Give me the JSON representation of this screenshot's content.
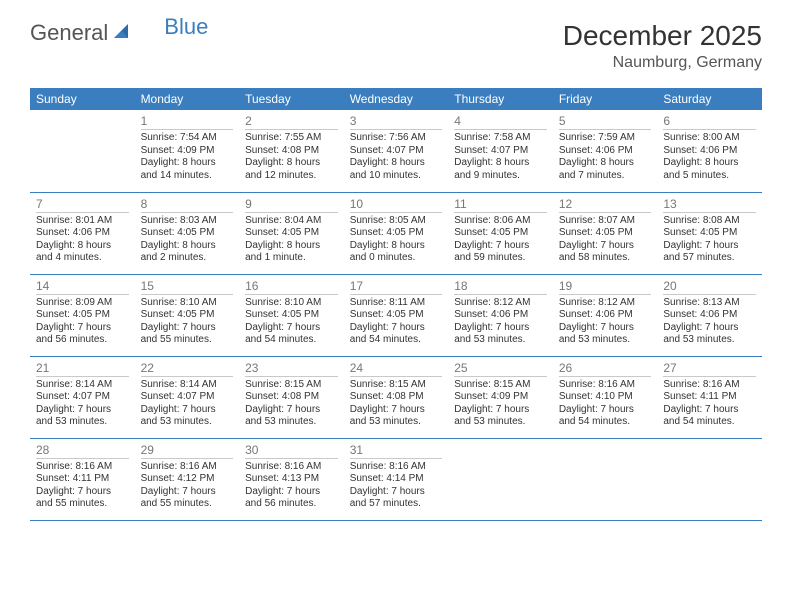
{
  "brand": {
    "part1": "General",
    "part2": "Blue"
  },
  "title": "December 2025",
  "location": "Naumburg, Germany",
  "colors": {
    "header_bg": "#3a7ebf",
    "header_text": "#ffffff",
    "row_divider": "#3a7ebf",
    "daynum_divider": "#c9c9c9",
    "text": "#333333",
    "logo_blue": "#3a7ebf"
  },
  "weekdays": [
    "Sunday",
    "Monday",
    "Tuesday",
    "Wednesday",
    "Thursday",
    "Friday",
    "Saturday"
  ],
  "weeks": [
    [
      {
        "n": "",
        "sunrise": "",
        "sunset": "",
        "daylight": ""
      },
      {
        "n": "1",
        "sunrise": "Sunrise: 7:54 AM",
        "sunset": "Sunset: 4:09 PM",
        "daylight": "Daylight: 8 hours and 14 minutes."
      },
      {
        "n": "2",
        "sunrise": "Sunrise: 7:55 AM",
        "sunset": "Sunset: 4:08 PM",
        "daylight": "Daylight: 8 hours and 12 minutes."
      },
      {
        "n": "3",
        "sunrise": "Sunrise: 7:56 AM",
        "sunset": "Sunset: 4:07 PM",
        "daylight": "Daylight: 8 hours and 10 minutes."
      },
      {
        "n": "4",
        "sunrise": "Sunrise: 7:58 AM",
        "sunset": "Sunset: 4:07 PM",
        "daylight": "Daylight: 8 hours and 9 minutes."
      },
      {
        "n": "5",
        "sunrise": "Sunrise: 7:59 AM",
        "sunset": "Sunset: 4:06 PM",
        "daylight": "Daylight: 8 hours and 7 minutes."
      },
      {
        "n": "6",
        "sunrise": "Sunrise: 8:00 AM",
        "sunset": "Sunset: 4:06 PM",
        "daylight": "Daylight: 8 hours and 5 minutes."
      }
    ],
    [
      {
        "n": "7",
        "sunrise": "Sunrise: 8:01 AM",
        "sunset": "Sunset: 4:06 PM",
        "daylight": "Daylight: 8 hours and 4 minutes."
      },
      {
        "n": "8",
        "sunrise": "Sunrise: 8:03 AM",
        "sunset": "Sunset: 4:05 PM",
        "daylight": "Daylight: 8 hours and 2 minutes."
      },
      {
        "n": "9",
        "sunrise": "Sunrise: 8:04 AM",
        "sunset": "Sunset: 4:05 PM",
        "daylight": "Daylight: 8 hours and 1 minute."
      },
      {
        "n": "10",
        "sunrise": "Sunrise: 8:05 AM",
        "sunset": "Sunset: 4:05 PM",
        "daylight": "Daylight: 8 hours and 0 minutes."
      },
      {
        "n": "11",
        "sunrise": "Sunrise: 8:06 AM",
        "sunset": "Sunset: 4:05 PM",
        "daylight": "Daylight: 7 hours and 59 minutes."
      },
      {
        "n": "12",
        "sunrise": "Sunrise: 8:07 AM",
        "sunset": "Sunset: 4:05 PM",
        "daylight": "Daylight: 7 hours and 58 minutes."
      },
      {
        "n": "13",
        "sunrise": "Sunrise: 8:08 AM",
        "sunset": "Sunset: 4:05 PM",
        "daylight": "Daylight: 7 hours and 57 minutes."
      }
    ],
    [
      {
        "n": "14",
        "sunrise": "Sunrise: 8:09 AM",
        "sunset": "Sunset: 4:05 PM",
        "daylight": "Daylight: 7 hours and 56 minutes."
      },
      {
        "n": "15",
        "sunrise": "Sunrise: 8:10 AM",
        "sunset": "Sunset: 4:05 PM",
        "daylight": "Daylight: 7 hours and 55 minutes."
      },
      {
        "n": "16",
        "sunrise": "Sunrise: 8:10 AM",
        "sunset": "Sunset: 4:05 PM",
        "daylight": "Daylight: 7 hours and 54 minutes."
      },
      {
        "n": "17",
        "sunrise": "Sunrise: 8:11 AM",
        "sunset": "Sunset: 4:05 PM",
        "daylight": "Daylight: 7 hours and 54 minutes."
      },
      {
        "n": "18",
        "sunrise": "Sunrise: 8:12 AM",
        "sunset": "Sunset: 4:06 PM",
        "daylight": "Daylight: 7 hours and 53 minutes."
      },
      {
        "n": "19",
        "sunrise": "Sunrise: 8:12 AM",
        "sunset": "Sunset: 4:06 PM",
        "daylight": "Daylight: 7 hours and 53 minutes."
      },
      {
        "n": "20",
        "sunrise": "Sunrise: 8:13 AM",
        "sunset": "Sunset: 4:06 PM",
        "daylight": "Daylight: 7 hours and 53 minutes."
      }
    ],
    [
      {
        "n": "21",
        "sunrise": "Sunrise: 8:14 AM",
        "sunset": "Sunset: 4:07 PM",
        "daylight": "Daylight: 7 hours and 53 minutes."
      },
      {
        "n": "22",
        "sunrise": "Sunrise: 8:14 AM",
        "sunset": "Sunset: 4:07 PM",
        "daylight": "Daylight: 7 hours and 53 minutes."
      },
      {
        "n": "23",
        "sunrise": "Sunrise: 8:15 AM",
        "sunset": "Sunset: 4:08 PM",
        "daylight": "Daylight: 7 hours and 53 minutes."
      },
      {
        "n": "24",
        "sunrise": "Sunrise: 8:15 AM",
        "sunset": "Sunset: 4:08 PM",
        "daylight": "Daylight: 7 hours and 53 minutes."
      },
      {
        "n": "25",
        "sunrise": "Sunrise: 8:15 AM",
        "sunset": "Sunset: 4:09 PM",
        "daylight": "Daylight: 7 hours and 53 minutes."
      },
      {
        "n": "26",
        "sunrise": "Sunrise: 8:16 AM",
        "sunset": "Sunset: 4:10 PM",
        "daylight": "Daylight: 7 hours and 54 minutes."
      },
      {
        "n": "27",
        "sunrise": "Sunrise: 8:16 AM",
        "sunset": "Sunset: 4:11 PM",
        "daylight": "Daylight: 7 hours and 54 minutes."
      }
    ],
    [
      {
        "n": "28",
        "sunrise": "Sunrise: 8:16 AM",
        "sunset": "Sunset: 4:11 PM",
        "daylight": "Daylight: 7 hours and 55 minutes."
      },
      {
        "n": "29",
        "sunrise": "Sunrise: 8:16 AM",
        "sunset": "Sunset: 4:12 PM",
        "daylight": "Daylight: 7 hours and 55 minutes."
      },
      {
        "n": "30",
        "sunrise": "Sunrise: 8:16 AM",
        "sunset": "Sunset: 4:13 PM",
        "daylight": "Daylight: 7 hours and 56 minutes."
      },
      {
        "n": "31",
        "sunrise": "Sunrise: 8:16 AM",
        "sunset": "Sunset: 4:14 PM",
        "daylight": "Daylight: 7 hours and 57 minutes."
      },
      {
        "n": "",
        "sunrise": "",
        "sunset": "",
        "daylight": ""
      },
      {
        "n": "",
        "sunrise": "",
        "sunset": "",
        "daylight": ""
      },
      {
        "n": "",
        "sunrise": "",
        "sunset": "",
        "daylight": ""
      }
    ]
  ]
}
